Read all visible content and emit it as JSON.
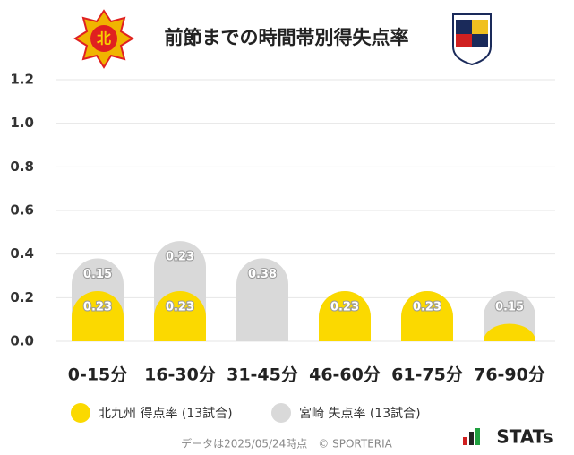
{
  "chart_data": {
    "type": "bar",
    "stacked": true,
    "title": "前節までの時間帯別得失点率",
    "categories": [
      "0-15分",
      "16-30分",
      "31-45分",
      "46-60分",
      "61-75分",
      "76-90分"
    ],
    "series": [
      {
        "name": "北九州 得点率 (13試合)",
        "color": "#fbd900",
        "values": [
          0.23,
          0.23,
          0,
          0.23,
          0.23,
          0.08
        ],
        "value_labels": [
          "0.23",
          "0.23",
          null,
          "0.23",
          "0.23",
          null
        ]
      },
      {
        "name": "宮崎 失点率 (13試合)",
        "color": "#d9d9d9",
        "values": [
          0.15,
          0.23,
          0.38,
          0,
          0,
          0.15
        ],
        "value_labels": [
          "0.15",
          "0.23",
          "0.38",
          null,
          null,
          "0.15"
        ]
      }
    ],
    "ylim": [
      0,
      1.2
    ],
    "yticks": [
      {
        "value": 0,
        "label": "0.0"
      },
      0.2,
      0.4,
      0.6,
      0.8,
      {
        "value": 1,
        "label": "1.0"
      },
      1.2
    ],
    "grid": true,
    "footer": "データは2025/05/24時点　© SPORTERIA",
    "brand": "STATs"
  }
}
